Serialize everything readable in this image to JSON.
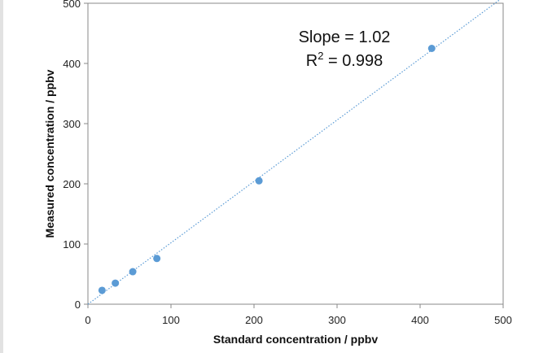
{
  "chart_data": {
    "type": "scatter",
    "title": "",
    "xlabel": "Standard concentration / ppbv",
    "ylabel": "Measured concentration / ppbv",
    "xlim": [
      0,
      500
    ],
    "ylim": [
      0,
      500
    ],
    "xticks": [
      0,
      100,
      200,
      300,
      400,
      500
    ],
    "yticks": [
      0,
      100,
      200,
      300,
      400,
      500
    ],
    "grid": false,
    "legend": "none",
    "series": [
      {
        "points": [
          {
            "x": 17,
            "y": 23
          },
          {
            "x": 33,
            "y": 35
          },
          {
            "x": 54,
            "y": 54
          },
          {
            "x": 83,
            "y": 76
          },
          {
            "x": 206,
            "y": 205
          },
          {
            "x": 414,
            "y": 425
          }
        ],
        "color": "#5b9bd5"
      }
    ],
    "trendline": {
      "x": [
        0,
        500
      ],
      "y": [
        0,
        510
      ],
      "style": "dotted",
      "color": "#5b9bd5"
    },
    "annotations": {
      "slope": "Slope = 1.02",
      "r2_prefix": "R",
      "r2_sup": "2",
      "r2_rest": " = 0.998"
    }
  }
}
